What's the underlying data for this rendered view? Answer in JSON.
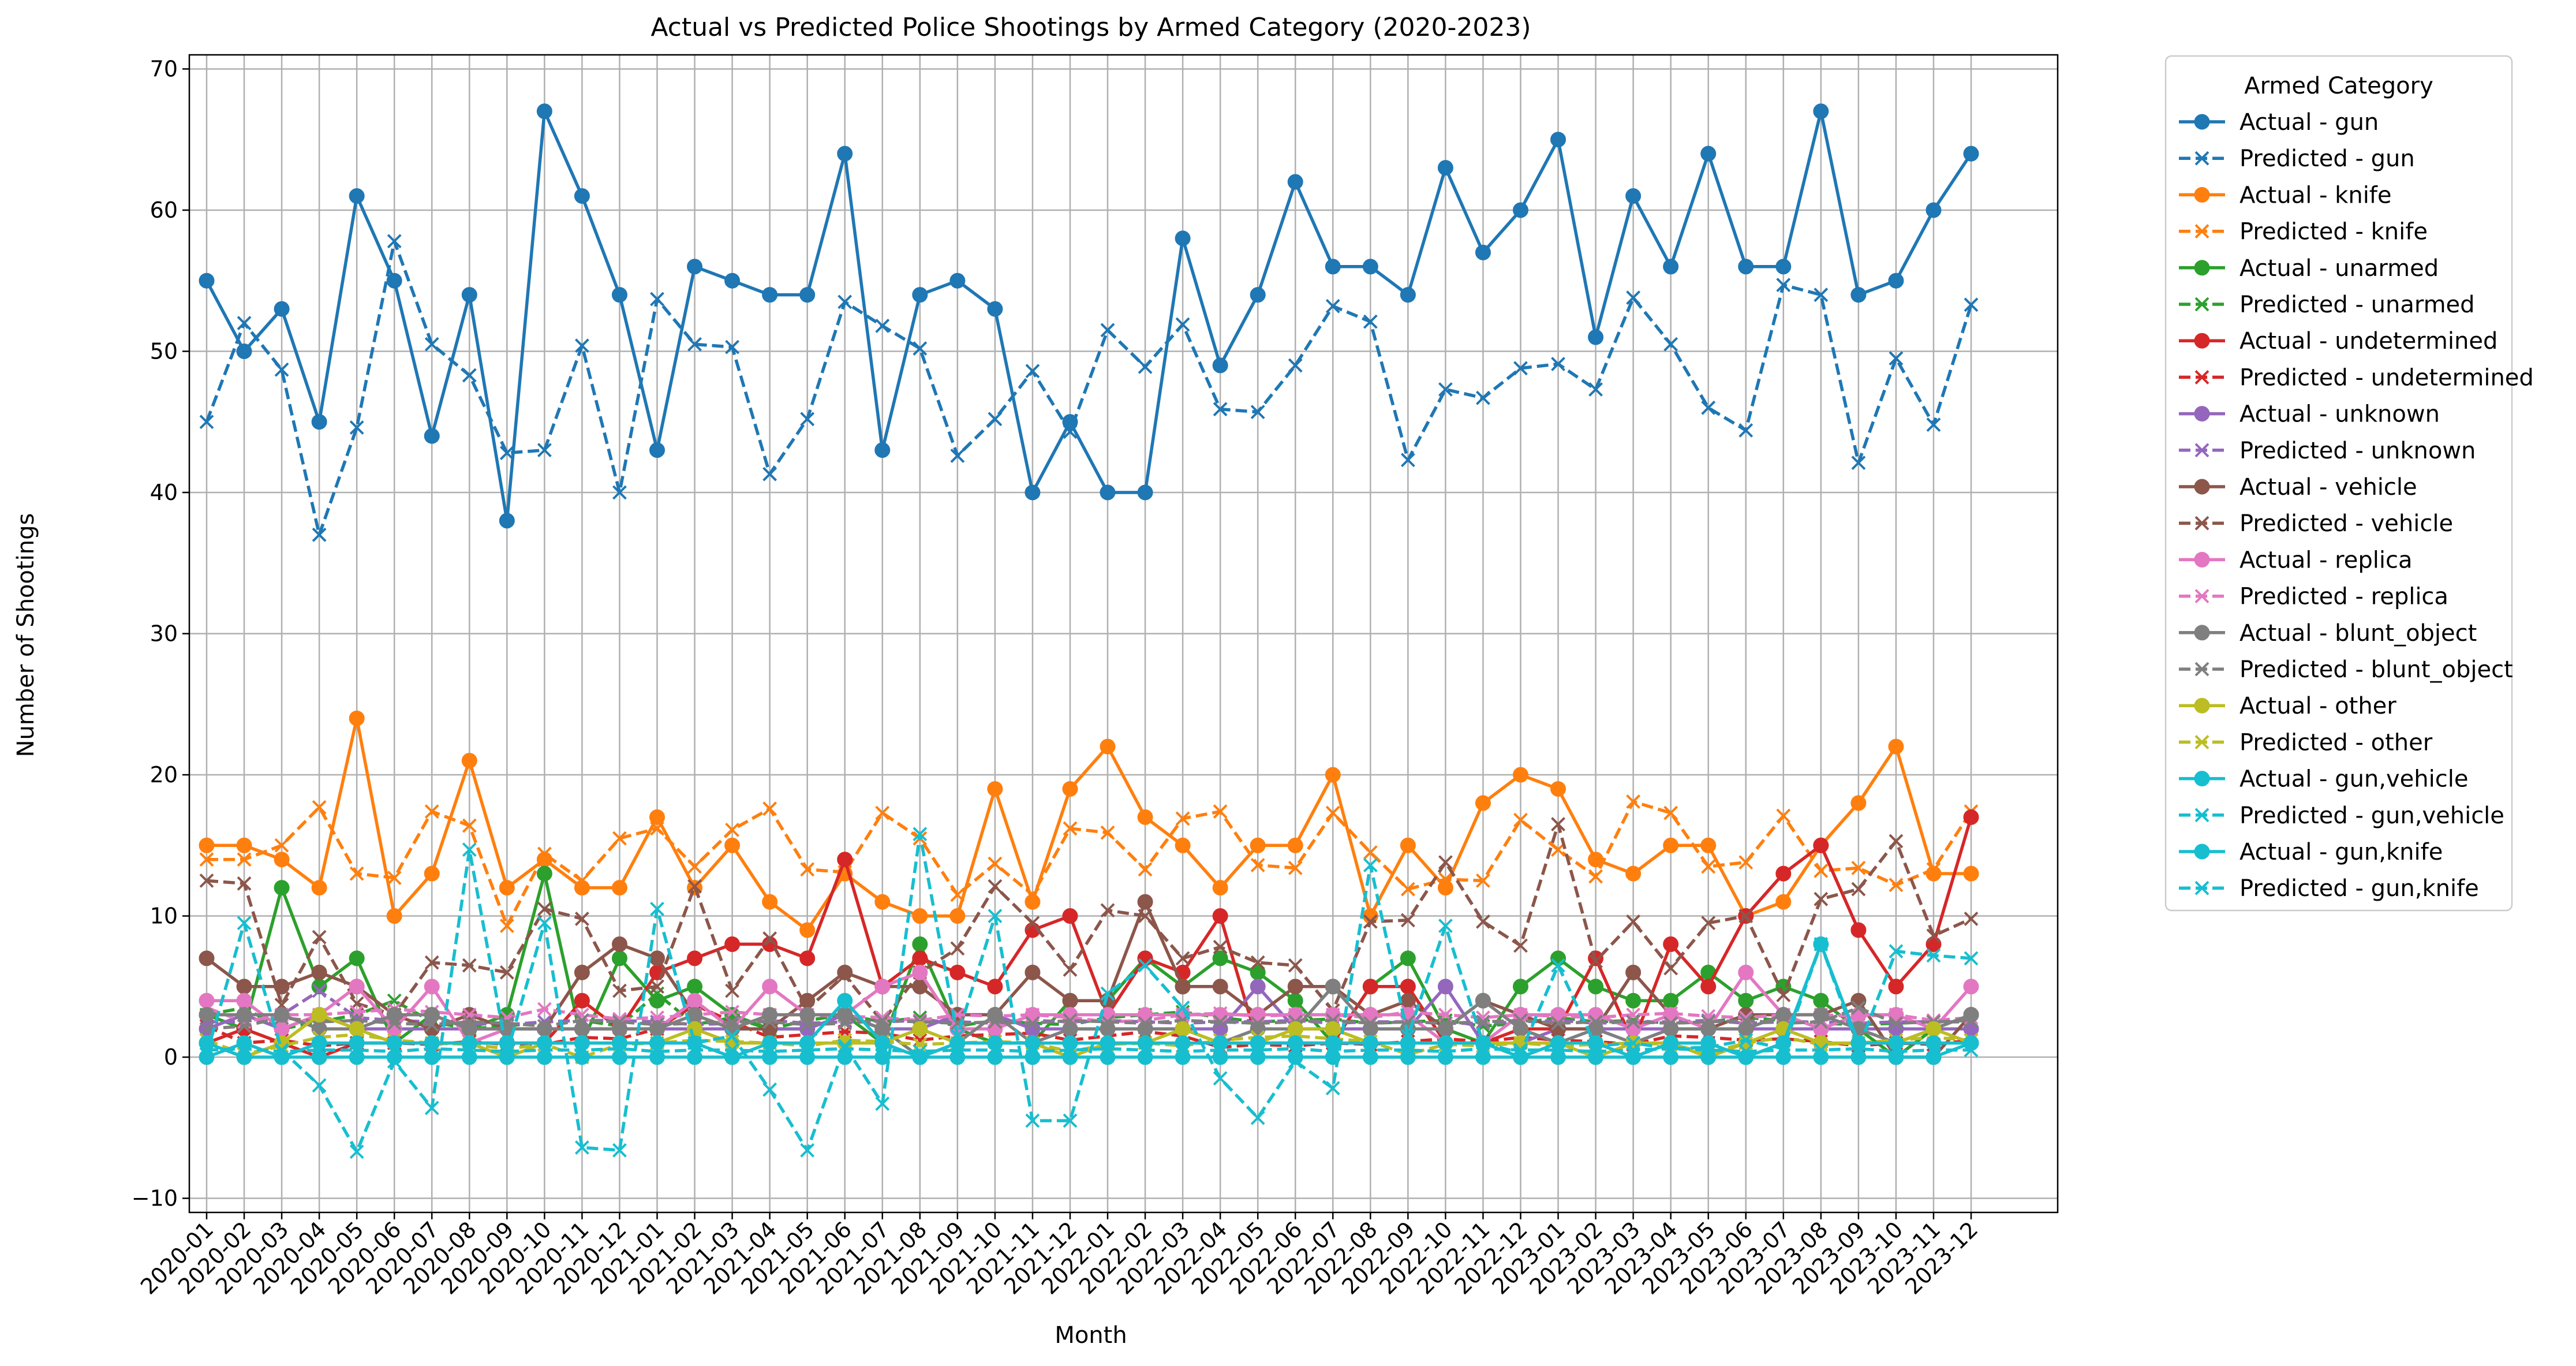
{
  "chart_data": {
    "type": "line",
    "title": "Actual vs Predicted Police Shootings by Armed Category (2020-2023)",
    "xlabel": "Month",
    "ylabel": "Number of Shootings",
    "ylim": [
      -11,
      71
    ],
    "yticks": [
      -10,
      0,
      10,
      20,
      30,
      40,
      50,
      60,
      70
    ],
    "grid": true,
    "legend": {
      "title": "Armed Category",
      "placement": "outside-top-right"
    },
    "x": [
      "2020-01",
      "2020-02",
      "2020-03",
      "2020-04",
      "2020-05",
      "2020-06",
      "2020-07",
      "2020-08",
      "2020-09",
      "2020-10",
      "2020-11",
      "2020-12",
      "2021-01",
      "2021-02",
      "2021-03",
      "2021-04",
      "2021-05",
      "2021-06",
      "2021-07",
      "2021-08",
      "2021-09",
      "2021-10",
      "2021-11",
      "2021-12",
      "2022-01",
      "2022-02",
      "2022-03",
      "2022-04",
      "2022-05",
      "2022-06",
      "2022-07",
      "2022-08",
      "2022-09",
      "2022-10",
      "2022-11",
      "2022-12",
      "2023-01",
      "2023-02",
      "2023-03",
      "2023-04",
      "2023-05",
      "2023-06",
      "2023-07",
      "2023-08",
      "2023-09",
      "2023-10",
      "2023-11",
      "2023-12"
    ],
    "series": [
      {
        "name": "Actual - gun",
        "kind": "actual",
        "color": "#1f77b4",
        "values": [
          55,
          50,
          53,
          45,
          61,
          55,
          44,
          54,
          38,
          67,
          61,
          54,
          43,
          56,
          55,
          54,
          54,
          64,
          43,
          54,
          55,
          53,
          40,
          45,
          40,
          40,
          58,
          49,
          54,
          62,
          56,
          56,
          54,
          63,
          57,
          60,
          65,
          51,
          61,
          56,
          64,
          56,
          56,
          67,
          54,
          55,
          60,
          64
        ]
      },
      {
        "name": "Predicted - gun",
        "kind": "predicted",
        "color": "#1f77b4",
        "values": [
          45,
          52,
          48.7,
          37,
          44.6,
          57.8,
          50.5,
          48.3,
          42.8,
          43,
          50.4,
          40,
          53.7,
          50.5,
          50.3,
          41.3,
          45.2,
          53.5,
          51.8,
          50.2,
          42.6,
          45.2,
          48.6,
          44.3,
          51.5,
          48.9,
          51.9,
          45.9,
          45.7,
          49,
          53.2,
          52.1,
          42.3,
          47.3,
          46.7,
          48.8,
          49.1,
          47.3,
          53.8,
          50.5,
          46,
          44.4,
          54.7,
          54,
          42.1,
          49.5,
          44.8,
          53.3
        ]
      },
      {
        "name": "Actual - knife",
        "kind": "actual",
        "color": "#ff7f0e",
        "values": [
          15,
          15,
          14,
          12,
          24,
          10,
          13,
          21,
          12,
          14,
          12,
          12,
          17,
          12,
          15,
          11,
          9,
          13,
          11,
          10,
          10,
          19,
          11,
          19,
          22,
          17,
          15,
          12,
          15,
          15,
          20,
          10,
          15,
          12,
          18,
          20,
          19,
          14,
          13,
          15,
          15,
          10,
          11,
          15,
          18,
          22,
          13,
          13
        ]
      },
      {
        "name": "Predicted - knife",
        "kind": "predicted",
        "color": "#ff7f0e",
        "values": [
          14,
          14,
          15,
          17.7,
          13,
          12.7,
          17.4,
          16.4,
          9.3,
          14.4,
          12.5,
          15.5,
          16.2,
          13.5,
          16.1,
          17.6,
          13.3,
          13.1,
          17.3,
          15.5,
          11.5,
          13.7,
          11.5,
          16.2,
          15.9,
          13.3,
          16.9,
          17.4,
          13.6,
          13.4,
          17.3,
          14.5,
          11.9,
          12.6,
          12.5,
          16.8,
          14.7,
          12.8,
          18.1,
          17.3,
          13.5,
          13.8,
          17.1,
          13.2,
          13.4,
          12.2,
          13.3,
          17.4
        ]
      },
      {
        "name": "Actual - unarmed",
        "kind": "actual",
        "color": "#2ca02c",
        "values": [
          3,
          2,
          12,
          5,
          7,
          1,
          3,
          2,
          3,
          13,
          1,
          7,
          4,
          5,
          3,
          2,
          2,
          3,
          1,
          8,
          2,
          1,
          1,
          4,
          4,
          7,
          5,
          7,
          6,
          4,
          1,
          5,
          7,
          2,
          1,
          5,
          7,
          5,
          4,
          4,
          6,
          4,
          5,
          4,
          2,
          0,
          2,
          3
        ]
      },
      {
        "name": "Predicted - unarmed",
        "kind": "predicted",
        "color": "#2ca02c",
        "values": [
          3,
          3.5,
          2,
          2.5,
          3,
          4,
          2.5,
          2,
          2.2,
          2.5,
          2.6,
          2.2,
          4.5,
          2.3,
          2.8,
          2,
          2.6,
          3,
          2.5,
          2.8,
          2.2,
          2.6,
          2.4,
          2.3,
          2.8,
          3,
          3.2,
          2.8,
          2.5,
          2.6,
          2.7,
          2.4,
          2.5,
          2.6,
          2.2,
          2.4,
          2.8,
          2.5,
          2.6,
          2.4,
          2.5,
          2.8,
          2.6,
          2.4,
          2.3,
          2.4,
          2.5,
          2.5
        ]
      },
      {
        "name": "Actual - undetermined",
        "kind": "actual",
        "color": "#d62728",
        "values": [
          1,
          2,
          1,
          0,
          1,
          1,
          1,
          1,
          1,
          1,
          4,
          2,
          6,
          7,
          8,
          8,
          7,
          14,
          5,
          7,
          6,
          5,
          9,
          10,
          3,
          7,
          6,
          10,
          1,
          1,
          1,
          5,
          5,
          1,
          1,
          2,
          2,
          7,
          1,
          8,
          5,
          10,
          13,
          15,
          9,
          5,
          8,
          17
        ]
      },
      {
        "name": "Predicted - undetermined",
        "kind": "predicted",
        "color": "#d62728",
        "values": [
          2.2,
          1,
          1.2,
          0.8,
          1,
          1,
          0.9,
          1.1,
          0.9,
          0.9,
          1.4,
          1.3,
          2,
          3.7,
          2.5,
          1.4,
          1.6,
          1.8,
          1.7,
          1.2,
          1.5,
          1.6,
          1.7,
          1.2,
          1.5,
          1.8,
          1.5,
          0.7,
          0.9,
          0.8,
          1,
          0.9,
          1.1,
          1.3,
          1.1,
          1.4,
          1.2,
          1.1,
          0.9,
          1.5,
          1.4,
          1.2,
          1.3,
          1.1,
          0.8,
          1,
          0.9,
          1.2
        ]
      },
      {
        "name": "Actual - unknown",
        "kind": "actual",
        "color": "#9467bd",
        "values": [
          2,
          3,
          2,
          3,
          2,
          2,
          2,
          2,
          2,
          2,
          2,
          2,
          2,
          2,
          2,
          2,
          2,
          3,
          2,
          2,
          3,
          3,
          2,
          2,
          2,
          2,
          2,
          2,
          5,
          2,
          2,
          2,
          2,
          5,
          1,
          1,
          2,
          2,
          2,
          2,
          2,
          2,
          2,
          2,
          2,
          2,
          2,
          2
        ]
      },
      {
        "name": "Predicted - unknown",
        "kind": "predicted",
        "color": "#9467bd",
        "values": [
          2.5,
          2.5,
          3,
          4.7,
          2.8,
          2.6,
          2.5,
          2.4,
          2.3,
          2.5,
          2.6,
          2.6,
          2.5,
          2.3,
          2.4,
          2.6,
          2.4,
          2.5,
          2.5,
          2.6,
          2.5,
          2.4,
          2.6,
          2.5,
          2.6,
          2.5,
          2.4,
          2.5,
          2.5,
          2.6,
          2.4,
          2.5,
          2.5,
          2.4,
          2.4,
          2.5,
          2.6,
          2.4,
          2.5,
          2.5,
          2.6,
          2.4,
          2.5,
          2.5,
          2.4,
          2.5,
          2.5,
          2.5
        ]
      },
      {
        "name": "Actual - vehicle",
        "kind": "actual",
        "color": "#8c564b",
        "values": [
          7,
          5,
          5,
          6,
          5,
          3,
          2,
          3,
          2,
          2,
          6,
          8,
          7,
          3,
          2,
          2,
          4,
          6,
          5,
          5,
          3,
          3,
          6,
          4,
          4,
          11,
          5,
          5,
          3,
          5,
          5,
          3,
          4,
          2,
          4,
          3,
          2,
          2,
          6,
          3,
          2,
          3,
          3,
          3,
          4,
          0,
          0,
          3
        ]
      },
      {
        "name": "Predicted - vehicle",
        "kind": "predicted",
        "color": "#8c564b",
        "values": [
          12.5,
          12.3,
          3.7,
          8.5,
          3.8,
          3,
          6.7,
          6.5,
          6,
          10.5,
          9.8,
          4.7,
          5,
          12.1,
          4.7,
          8.4,
          3.4,
          5.8,
          2.5,
          6,
          7.7,
          12.1,
          9.5,
          6.2,
          10.4,
          10,
          7,
          7.8,
          6.7,
          6.5,
          3.3,
          9.6,
          9.7,
          13.8,
          9.6,
          7.9,
          16.5,
          6.8,
          9.6,
          6.3,
          9.5,
          10,
          4.4,
          11.2,
          11.9,
          15.3,
          8.6,
          9.8
        ]
      },
      {
        "name": "Actual - replica",
        "kind": "actual",
        "color": "#e377c2",
        "values": [
          4,
          4,
          2,
          3,
          5,
          2,
          5,
          1,
          2,
          2,
          2,
          2,
          2,
          4,
          2,
          5,
          3,
          3,
          5,
          6,
          2,
          2,
          3,
          3,
          3,
          3,
          3,
          3,
          3,
          3,
          3,
          3,
          3,
          1,
          1,
          3,
          3,
          3,
          2,
          3,
          2,
          6,
          3,
          2,
          3,
          3,
          2,
          5
        ]
      },
      {
        "name": "Predicted - replica",
        "kind": "predicted",
        "color": "#e377c2",
        "values": [
          3.5,
          2.5,
          3,
          3,
          3.2,
          3.4,
          3.2,
          3,
          2.8,
          3.4,
          3,
          2.7,
          2.8,
          3,
          3.2,
          3,
          3,
          2.9,
          2.8,
          2.6,
          3,
          2.9,
          3,
          2.8,
          2.5,
          2.6,
          3,
          3.1,
          2.9,
          3,
          3,
          2.8,
          3.2,
          3,
          2.8,
          3,
          2.9,
          2.8,
          3,
          3.1,
          2.9,
          2.8,
          3,
          3,
          2.9,
          3,
          2.6,
          2.8
        ]
      },
      {
        "name": "Actual - blunt_object",
        "kind": "actual",
        "color": "#7f7f7f",
        "values": [
          3,
          3,
          3,
          2,
          2,
          3,
          3,
          2,
          2,
          2,
          2,
          2,
          2,
          3,
          2,
          3,
          3,
          3,
          2,
          0,
          1,
          3,
          1,
          2,
          2,
          2,
          2,
          1,
          2,
          2,
          5,
          2,
          2,
          2,
          4,
          2,
          1,
          2,
          1,
          2,
          2,
          2,
          3,
          3,
          2,
          1,
          2,
          3
        ]
      },
      {
        "name": "Predicted - blunt_object",
        "kind": "predicted",
        "color": "#7f7f7f",
        "values": [
          2,
          2.2,
          2.8,
          2.5,
          2.6,
          2.4,
          2.3,
          2.5,
          2.4,
          2.2,
          2.6,
          2.5,
          2.3,
          2.4,
          2.5,
          2.5,
          2.3,
          2.4,
          2.6,
          2.5,
          2.4,
          2.5,
          2.4,
          2.6,
          2.5,
          2.4,
          2.6,
          2.5,
          2.4,
          2.5,
          2.6,
          2.4,
          2.5,
          2.4,
          2.5,
          2.6,
          2.4,
          2.5,
          2.5,
          2.4,
          2.5,
          2.6,
          2.4,
          2.5,
          3.5,
          2.4,
          2.5,
          2.6
        ]
      },
      {
        "name": "Actual - other",
        "kind": "actual",
        "color": "#bcbd22",
        "values": [
          1,
          0,
          1,
          3,
          2,
          1,
          1,
          1,
          0,
          1,
          1,
          1,
          1,
          2,
          1,
          1,
          1,
          1,
          1,
          2,
          1,
          1,
          1,
          0,
          1,
          1,
          2,
          1,
          1,
          2,
          2,
          1,
          1,
          1,
          1,
          1,
          1,
          0,
          1,
          1,
          0,
          1,
          2,
          1,
          1,
          1,
          2,
          1
        ]
      },
      {
        "name": "Predicted - other",
        "kind": "predicted",
        "color": "#bcbd22",
        "values": [
          1.2,
          0.2,
          0.8,
          1.4,
          1.6,
          1.2,
          1,
          0.9,
          0.6,
          0.9,
          0,
          0.9,
          1,
          1.2,
          1.1,
          1,
          0.8,
          1.2,
          1.1,
          0.9,
          1,
          1.1,
          1,
          0.4,
          0.9,
          1,
          0.8,
          1.2,
          1.4,
          1.5,
          1.3,
          1.1,
          0.2,
          0.9,
          0.8,
          1,
          0.8,
          0.9,
          1,
          0.9,
          0.3,
          1,
          1.4,
          0.9,
          1,
          1.2,
          1.4,
          1.2
        ]
      },
      {
        "name": "Actual - gun,vehicle",
        "kind": "actual",
        "color": "#17becf",
        "values": [
          1,
          0,
          0,
          1,
          1,
          1,
          1,
          1,
          1,
          1,
          1,
          1,
          1,
          1,
          0,
          1,
          1,
          4,
          1,
          0,
          1,
          1,
          1,
          1,
          1,
          1,
          1,
          1,
          1,
          1,
          1,
          1,
          1,
          1,
          1,
          0,
          1,
          1,
          0,
          1,
          1,
          0,
          1,
          8,
          1,
          1,
          1,
          1
        ]
      },
      {
        "name": "Predicted - gun,vehicle",
        "kind": "predicted",
        "color": "#17becf",
        "values": [
          0.2,
          9.5,
          0.5,
          -2,
          -6.7,
          -0.3,
          -3.6,
          14.7,
          0.3,
          9.5,
          -6.4,
          -6.6,
          10.5,
          1,
          1.5,
          -2.3,
          -6.6,
          0.8,
          -3.3,
          15.8,
          1.5,
          10,
          -4.5,
          -4.5,
          4.5,
          6.5,
          3.5,
          -1.5,
          -4.3,
          -0.3,
          -2.2,
          13.6,
          1.5,
          9.3,
          1,
          0.3,
          6.5,
          0.8,
          1,
          0.6,
          0.7,
          1.2,
          0.6,
          8,
          0.6,
          7.5,
          7.2,
          7
        ]
      },
      {
        "name": "Actual - gun,knife",
        "kind": "actual",
        "color": "#17becf",
        "values": [
          0,
          1,
          0,
          0,
          0,
          0,
          0,
          0,
          0,
          0,
          0,
          0,
          0,
          0,
          0,
          0,
          0,
          0,
          0,
          0,
          0,
          0,
          0,
          0,
          0,
          0,
          0,
          0,
          0,
          0,
          0,
          0,
          0,
          0,
          0,
          0,
          0,
          0,
          0,
          0,
          0,
          0,
          0,
          0,
          0,
          0,
          0,
          1
        ]
      },
      {
        "name": "Predicted - gun,knife",
        "kind": "predicted",
        "color": "#17becf",
        "values": [
          0.5,
          0.6,
          0.4,
          0.5,
          0.5,
          0.4,
          0.6,
          0.5,
          0.4,
          0.5,
          0.5,
          0.6,
          0.4,
          0.5,
          0.5,
          0.4,
          0.5,
          0.6,
          0.5,
          0.4,
          0.5,
          0.5,
          0.4,
          0.5,
          0.6,
          0.5,
          0.4,
          0.5,
          0.5,
          0.6,
          0.4,
          0.5,
          0.5,
          0.4,
          0.6,
          0.5,
          0.5,
          0.4,
          0.5,
          0.6,
          0.5,
          0.4,
          0.5,
          0.5,
          0.6,
          0.4,
          0.5,
          0.5
        ]
      }
    ]
  }
}
